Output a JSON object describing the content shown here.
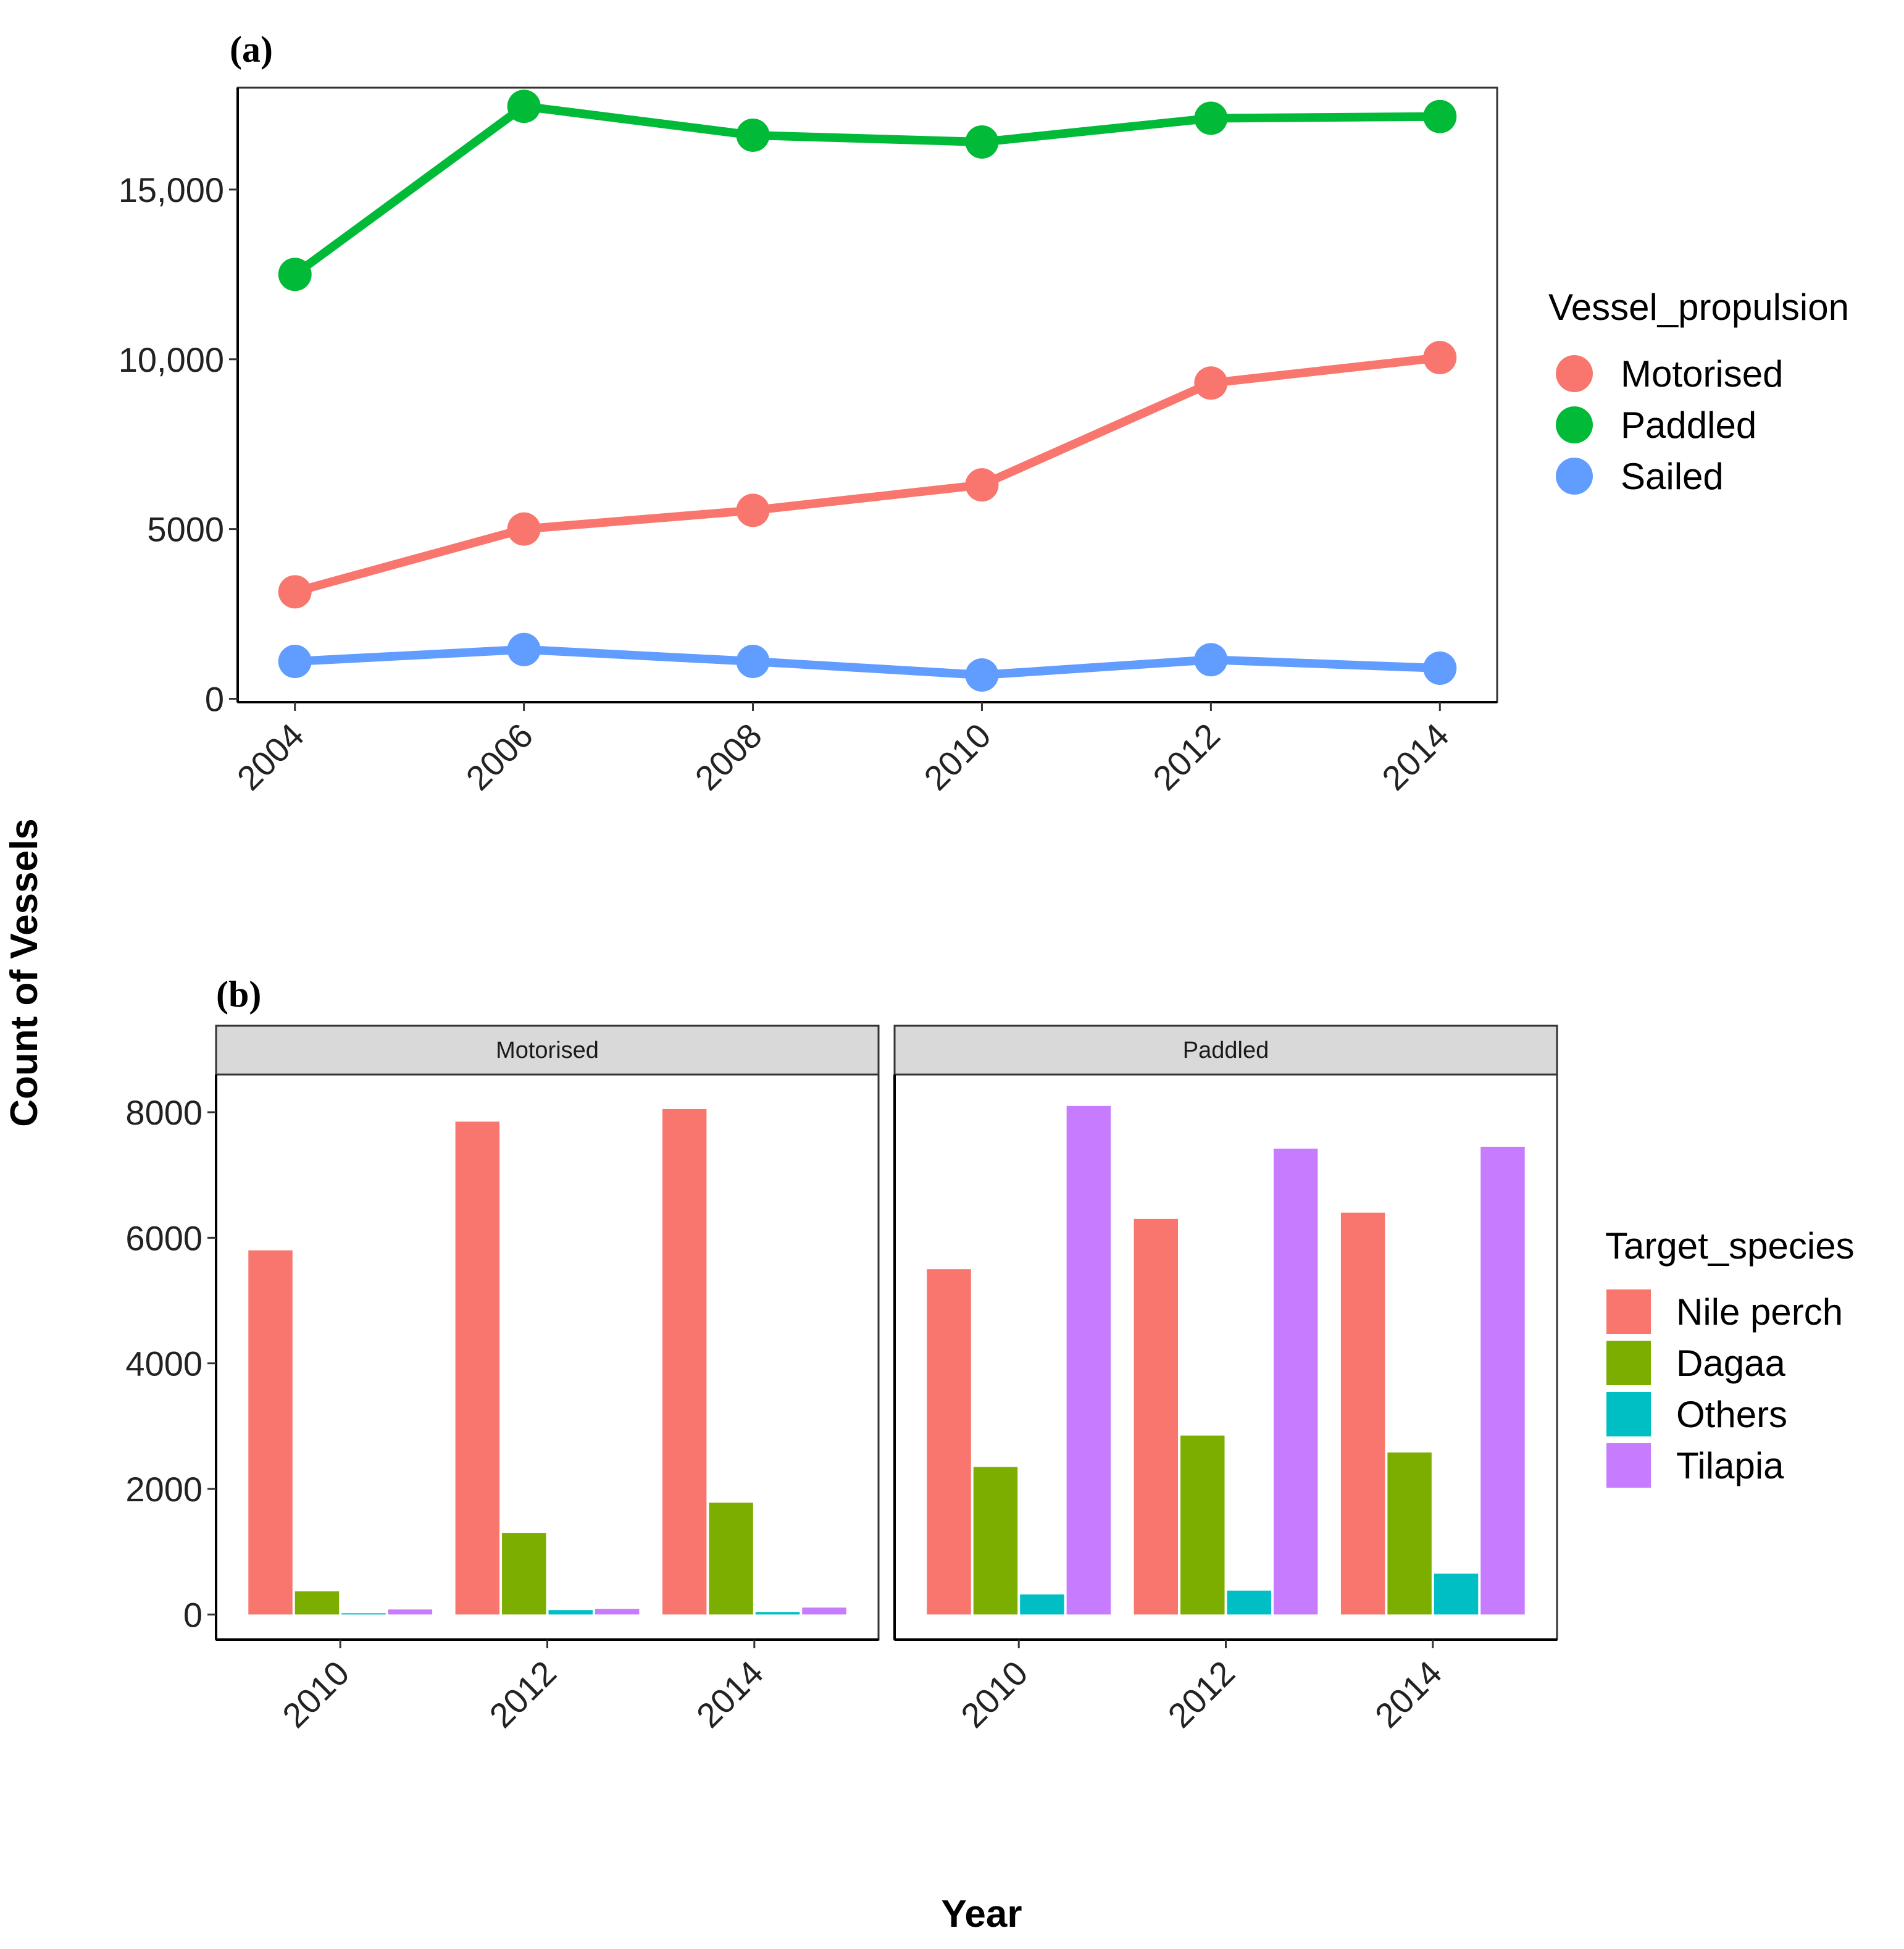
{
  "figure": {
    "y_axis_title": "Count of Vessels",
    "x_axis_title": "Year"
  },
  "chart_data": [
    {
      "panel_label": "(a)",
      "type": "line",
      "x": [
        2004,
        2006,
        2008,
        2010,
        2012,
        2014
      ],
      "x_tick_labels": [
        "2004",
        "2006",
        "2008",
        "2010",
        "2012",
        "2014"
      ],
      "y_ticks": [
        0,
        5000,
        10000,
        15000
      ],
      "y_tick_labels": [
        "0",
        "5000",
        "10,000",
        "15,000"
      ],
      "ylim": [
        -100,
        18000
      ],
      "legend_title": "Vessel_propulsion",
      "legend_position": "right",
      "series": [
        {
          "name": "Motorised",
          "color": "#F8766D",
          "values": [
            3150,
            5000,
            5550,
            6300,
            9300,
            10050
          ]
        },
        {
          "name": "Paddled",
          "color": "#00BA38",
          "values": [
            12500,
            17450,
            16600,
            16400,
            17100,
            17150
          ]
        },
        {
          "name": "Sailed",
          "color": "#619CFF",
          "values": [
            1100,
            1450,
            1100,
            700,
            1150,
            900
          ]
        }
      ]
    },
    {
      "panel_label": "(b)",
      "type": "bar",
      "facets": [
        "Motorised",
        "Paddled"
      ],
      "categories": [
        "2010",
        "2012",
        "2014"
      ],
      "y_ticks": [
        0,
        2000,
        4000,
        6000,
        8000
      ],
      "y_tick_labels": [
        "0",
        "2000",
        "4000",
        "6000",
        "8000"
      ],
      "ylim": [
        -400,
        8600
      ],
      "legend_title": "Target_species",
      "legend_position": "right",
      "series": [
        {
          "name": "Nile perch",
          "color": "#F8766D",
          "values": {
            "Motorised": [
              5800,
              7850,
              8050
            ],
            "Paddled": [
              5500,
              6300,
              6400
            ]
          }
        },
        {
          "name": "Dagaa",
          "color": "#7CAE00",
          "values": {
            "Motorised": [
              370,
              1300,
              1780
            ],
            "Paddled": [
              2350,
              2850,
              2580
            ]
          }
        },
        {
          "name": "Others",
          "color": "#00BFC4",
          "values": {
            "Motorised": [
              20,
              70,
              40
            ],
            "Paddled": [
              320,
              380,
              650
            ]
          }
        },
        {
          "name": "Tilapia",
          "color": "#C77CFF",
          "values": {
            "Motorised": [
              80,
              90,
              110
            ],
            "Paddled": [
              8100,
              7420,
              7450
            ]
          }
        }
      ]
    }
  ]
}
